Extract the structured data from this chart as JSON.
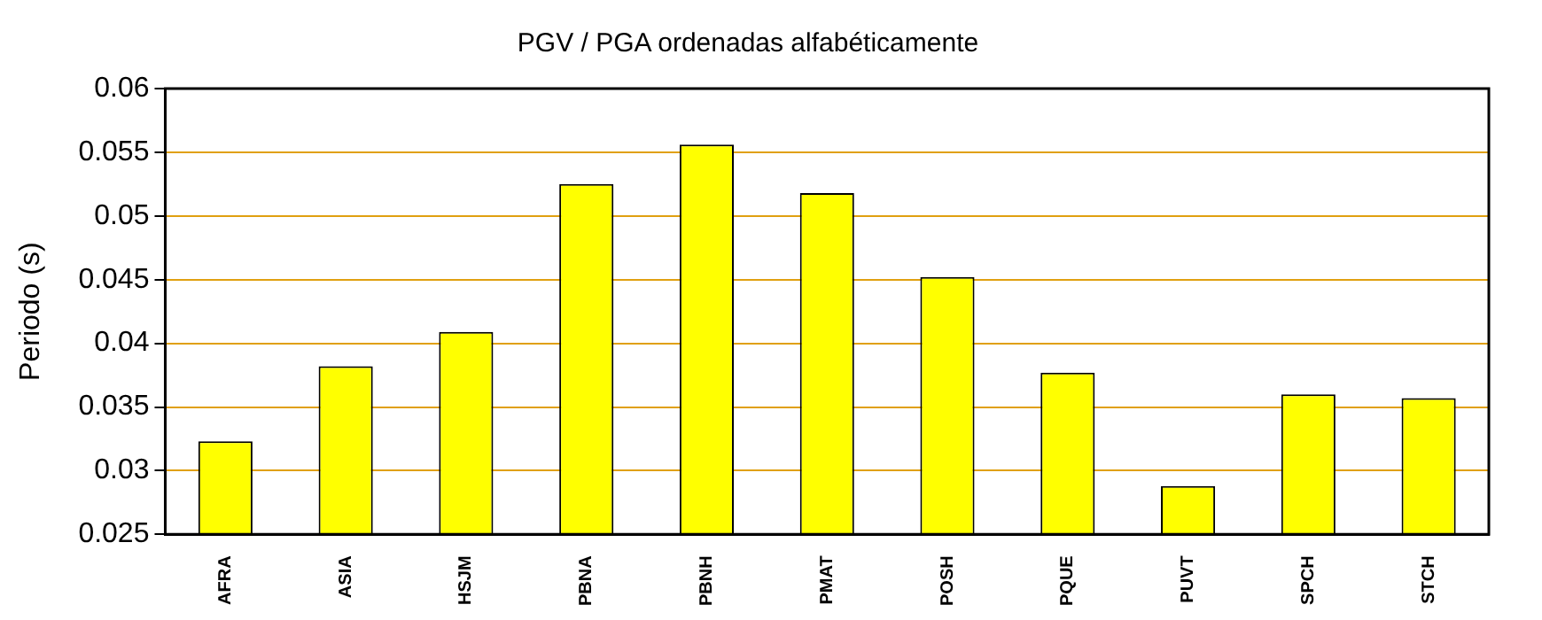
{
  "chart_data": {
    "type": "bar",
    "title": "PGV / PGA ordenadas alfabéticamente",
    "ylabel": "Periodo (s)",
    "categories": [
      "AFRA",
      "ASIA",
      "HSJM",
      "PBNA",
      "PBNH",
      "PMAT",
      "POSH",
      "PQUE",
      "PUVT",
      "SPCH",
      "STCH"
    ],
    "values": [
      0.0323,
      0.0382,
      0.0409,
      0.0525,
      0.0556,
      0.0518,
      0.0452,
      0.0377,
      0.0288,
      0.036,
      0.0357
    ],
    "color": "#ffff00",
    "ylim": [
      0.025,
      0.06
    ],
    "yticks": [
      0.025,
      0.03,
      0.035,
      0.04,
      0.045,
      0.05,
      0.055,
      0.06
    ],
    "grid": "y",
    "legend": false
  }
}
